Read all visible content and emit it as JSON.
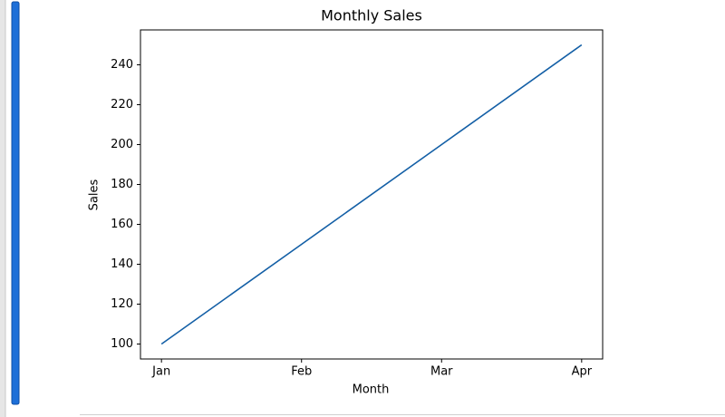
{
  "chart_data": {
    "type": "line",
    "title": "Monthly Sales",
    "x_label": "Month",
    "y_label": "Sales",
    "categories": [
      "Jan",
      "Feb",
      "Mar",
      "Apr"
    ],
    "series": [
      {
        "name": "Sales",
        "color": "#135fa6",
        "values": [
          100,
          150,
          200,
          250
        ]
      }
    ],
    "ylim": [
      92.5,
      257.5
    ],
    "yticks": [
      100,
      120,
      140,
      160,
      180,
      200,
      220,
      240
    ],
    "grid": false
  }
}
